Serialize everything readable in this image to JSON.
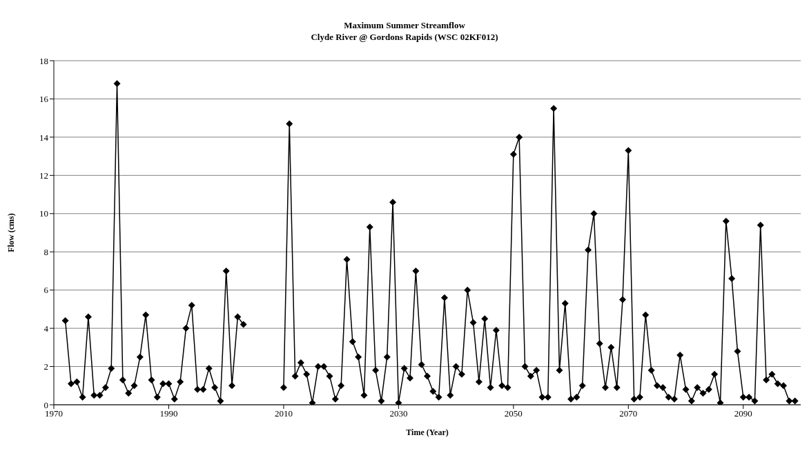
{
  "chart_data": {
    "type": "line",
    "title": "Maximum Summer Streamflow",
    "subtitle": "Clyde River @ Gordons Rapids (WSC 02KF012)",
    "xlabel": "Time (Year)",
    "ylabel": "Flow (cms)",
    "x": [
      1972,
      1973,
      1974,
      1975,
      1976,
      1977,
      1978,
      1979,
      1980,
      1981,
      1982,
      1983,
      1984,
      1985,
      1986,
      1987,
      1988,
      1989,
      1990,
      1991,
      1992,
      1993,
      1994,
      1995,
      1996,
      1997,
      1998,
      1999,
      2000,
      2001,
      2002,
      2003,
      2004,
      2005,
      2006,
      2007,
      2008,
      2009,
      2010,
      2011,
      2012,
      2013,
      2014,
      2015,
      2016,
      2017,
      2018,
      2019,
      2020,
      2021,
      2022,
      2023,
      2024,
      2025,
      2026,
      2027,
      2028,
      2029,
      2030,
      2031,
      2032,
      2033,
      2034,
      2035,
      2036,
      2037,
      2038,
      2039,
      2040,
      2041,
      2042,
      2043,
      2044,
      2045,
      2046,
      2047,
      2048,
      2049,
      2050,
      2051,
      2052,
      2053,
      2054,
      2055,
      2056,
      2057,
      2058,
      2059,
      2060,
      2061,
      2062,
      2063,
      2064,
      2065,
      2066,
      2067,
      2068,
      2069,
      2070,
      2071,
      2072,
      2073,
      2074,
      2075,
      2076,
      2077,
      2078,
      2079,
      2080,
      2081,
      2082,
      2083,
      2084,
      2085,
      2086,
      2087,
      2088,
      2089,
      2090,
      2091,
      2092,
      2093,
      2094,
      2095,
      2096,
      2097,
      2098,
      2099
    ],
    "series": [
      {
        "color": "#000000",
        "values": [
          4.4,
          1.1,
          1.2,
          0.4,
          4.6,
          0.5,
          0.5,
          0.9,
          1.9,
          16.8,
          1.3,
          0.6,
          1.0,
          2.5,
          4.7,
          1.3,
          0.4,
          1.1,
          1.1,
          0.3,
          1.2,
          4.0,
          5.2,
          0.8,
          0.8,
          1.9,
          0.9,
          0.2,
          7.0,
          1.0,
          4.6,
          4.2,
          null,
          null,
          null,
          null,
          null,
          null,
          0.9,
          14.7,
          1.5,
          2.2,
          1.6,
          0.1,
          2.0,
          2.0,
          1.5,
          0.3,
          1.0,
          7.6,
          3.3,
          2.5,
          0.5,
          9.3,
          1.8,
          0.2,
          2.5,
          10.6,
          0.1,
          1.9,
          1.4,
          7.0,
          2.1,
          1.5,
          0.7,
          0.4,
          5.6,
          0.5,
          2.0,
          1.6,
          6.0,
          4.3,
          1.2,
          4.5,
          0.9,
          3.9,
          1.0,
          0.9,
          13.1,
          14.0,
          2.0,
          1.5,
          1.8,
          0.4,
          0.4,
          15.5,
          1.8,
          5.3,
          0.3,
          0.4,
          1.0,
          8.1,
          10.0,
          3.2,
          0.9,
          3.0,
          0.9,
          5.5,
          13.3,
          0.3,
          0.4,
          4.7,
          1.8,
          1.0,
          0.9,
          0.4,
          0.3,
          2.6,
          0.8,
          0.2,
          0.9,
          0.6,
          0.8,
          1.6,
          0.1,
          9.6,
          6.6,
          2.8,
          0.4,
          0.4,
          0.2,
          9.4,
          1.3,
          1.6,
          1.1,
          1.0,
          0.2,
          0.2
        ]
      }
    ],
    "xlim": [
      1970,
      2100
    ],
    "xticks": [
      1970,
      1990,
      2010,
      2030,
      2050,
      2070,
      2090
    ],
    "ylim": [
      0,
      18
    ],
    "yticks": [
      0,
      2,
      4,
      6,
      8,
      10,
      12,
      14,
      16,
      18
    ],
    "grid": "y",
    "marker": "diamond",
    "line_style": "solid",
    "legend": false
  }
}
